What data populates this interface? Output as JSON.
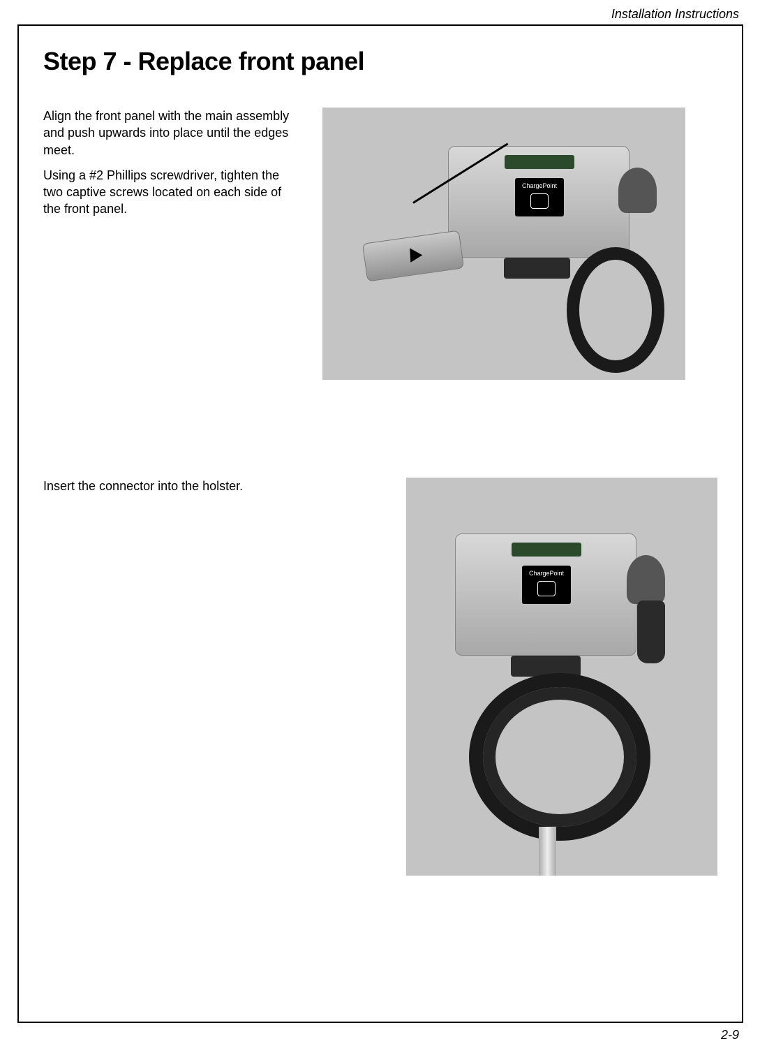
{
  "header": {
    "section_title": "Installation Instructions"
  },
  "content": {
    "step_title": "Step 7 - Replace front panel",
    "section1": {
      "para1": "Align the front panel with the main assembly and push upwards into place until the edges meet.",
      "para2": "Using a #2 Phillips screwdriver, tighten the two captive screws located on each side of the front panel."
    },
    "section2": {
      "para1": "Insert the connector into the holster."
    },
    "figures": {
      "fig1": {
        "device_label": "ChargePoint",
        "background_color": "#c4c4c4",
        "type": "product-illustration"
      },
      "fig2": {
        "device_label": "ChargePoint",
        "background_color": "#c4c4c4",
        "type": "product-illustration"
      }
    }
  },
  "footer": {
    "page_number": "2-9"
  }
}
